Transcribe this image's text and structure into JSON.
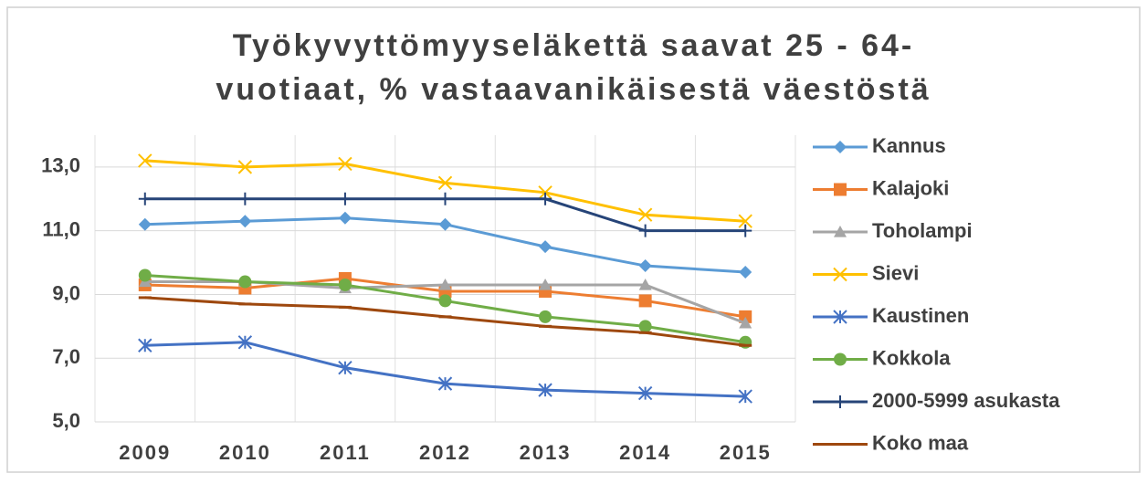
{
  "chart_data": {
    "type": "line",
    "title": [
      "Työkyvyttömyyseläkettä saavat 25 - 64-",
      "vuotiaat, % vastaavanikäisestä väestöstä"
    ],
    "categories": [
      "2009",
      "2010",
      "2011",
      "2012",
      "2013",
      "2014",
      "2015"
    ],
    "series": [
      {
        "name": "Kannus",
        "color": "#5b9bd5",
        "marker": "diamond",
        "values": [
          11.2,
          11.3,
          11.4,
          11.2,
          10.5,
          9.9,
          9.7
        ]
      },
      {
        "name": "Kalajoki",
        "color": "#ed7d31",
        "marker": "square",
        "values": [
          9.3,
          9.2,
          9.5,
          9.1,
          9.1,
          8.8,
          8.3
        ]
      },
      {
        "name": "Toholampi",
        "color": "#a5a5a5",
        "marker": "triangle",
        "values": [
          9.4,
          9.4,
          9.2,
          9.3,
          9.3,
          9.3,
          8.1
        ]
      },
      {
        "name": "Sievi",
        "color": "#ffc000",
        "marker": "x",
        "values": [
          13.2,
          13.0,
          13.1,
          12.5,
          12.2,
          11.5,
          11.3
        ]
      },
      {
        "name": "Kaustinen",
        "color": "#4472c4",
        "marker": "star",
        "values": [
          7.4,
          7.5,
          6.7,
          6.2,
          6.0,
          5.9,
          5.8
        ]
      },
      {
        "name": "Kokkola",
        "color": "#70ad47",
        "marker": "circle",
        "values": [
          9.6,
          9.4,
          9.3,
          8.8,
          8.3,
          8.0,
          7.5
        ]
      },
      {
        "name": "2000-5999 asukasta",
        "color": "#264478",
        "marker": "plus",
        "values": [
          12,
          12,
          12,
          12,
          12,
          11,
          11
        ]
      },
      {
        "name": "Koko maa",
        "color": "#9e480e",
        "marker": "dash",
        "values": [
          8.9,
          8.7,
          8.6,
          8.3,
          8.0,
          7.8,
          7.4
        ]
      }
    ],
    "ylim": [
      5,
      14
    ],
    "yticks": [
      {
        "value": 5,
        "label": "5,0"
      },
      {
        "value": 7,
        "label": "7,0"
      },
      {
        "value": 9,
        "label": "9,0"
      },
      {
        "value": 11,
        "label": "11,0"
      },
      {
        "value": 13,
        "label": "13,0"
      }
    ],
    "grid": true,
    "legend": "right"
  }
}
